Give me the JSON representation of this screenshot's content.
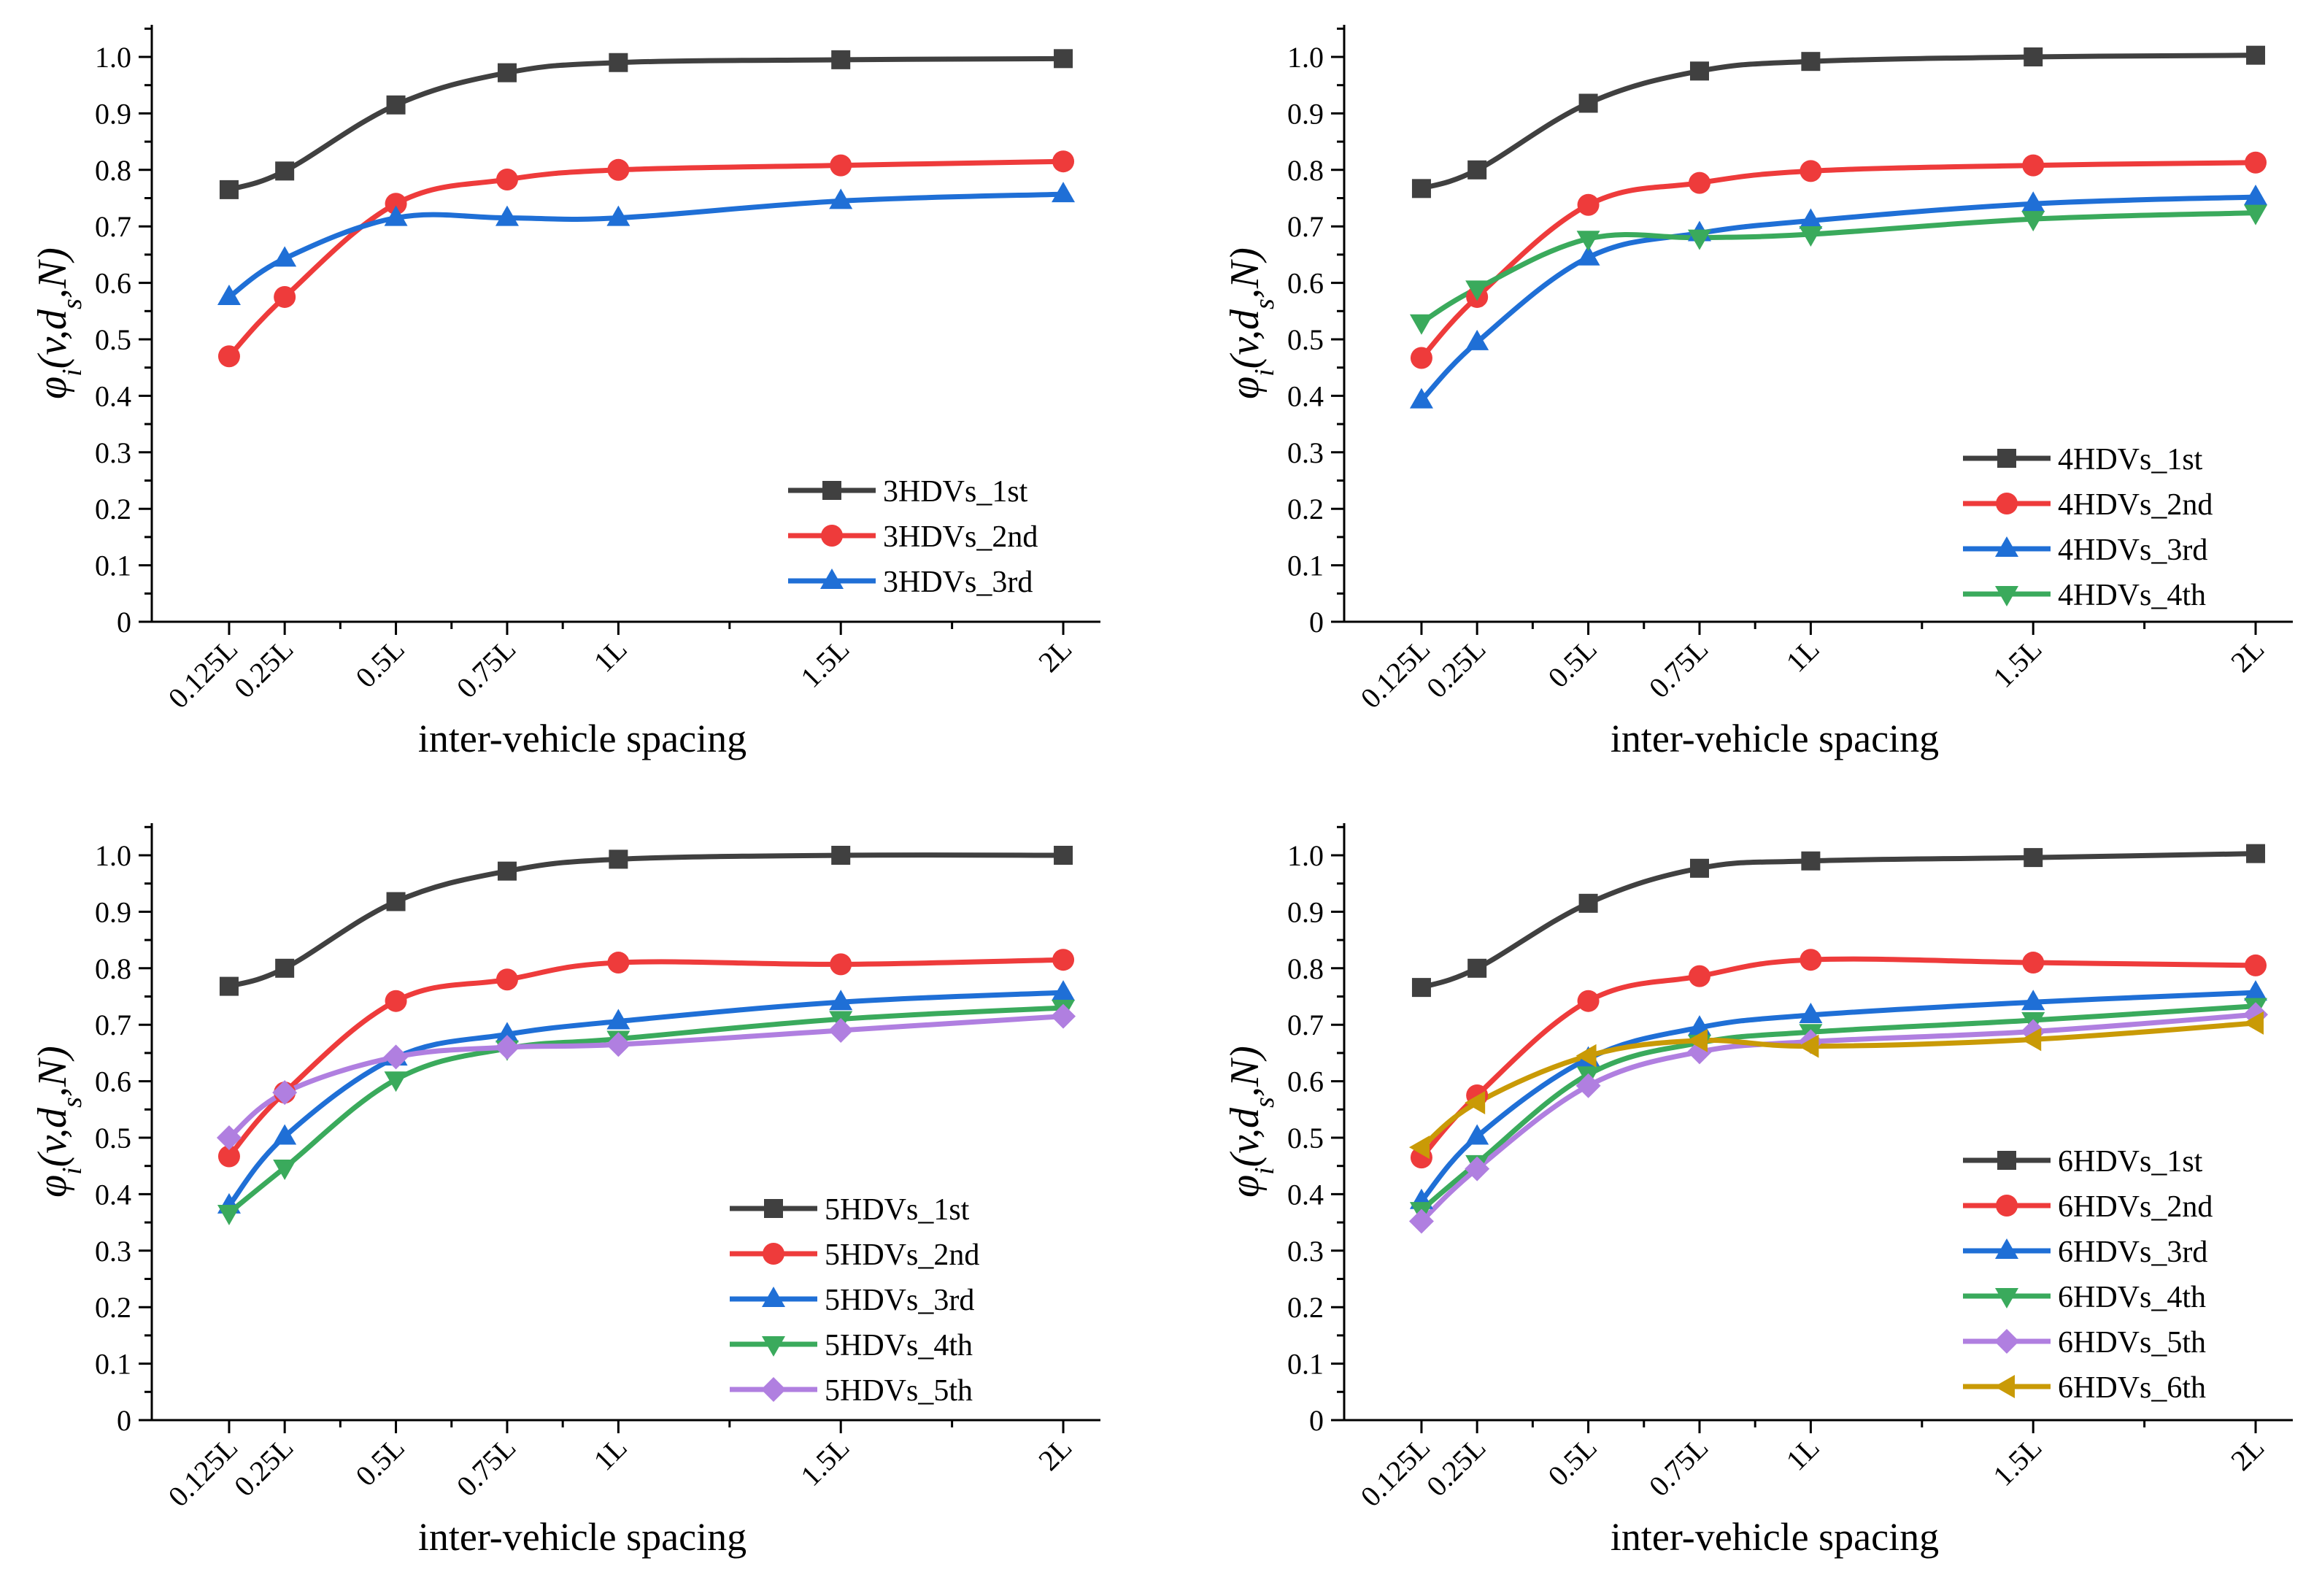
{
  "chart_data": [
    {
      "type": "line",
      "xlabel": "inter-vehicle spacing",
      "ylabel_base": "φ",
      "ylabel_sub": "i",
      "ylabel_args": "(v,d",
      "ylabel_args_sub": "s",
      "ylabel_args_end": ",N)",
      "ylim": [
        0,
        1.0
      ],
      "yticks": [
        "0",
        "0.1",
        "0.2",
        "0.3",
        "0.4",
        "0.5",
        "0.6",
        "0.7",
        "0.8",
        "0.9",
        "1.0"
      ],
      "x": [
        0.125,
        0.25,
        0.5,
        0.75,
        1,
        1.5,
        2
      ],
      "xtick_labels": [
        "0.125L",
        "0.25L",
        "0.5L",
        "0.75L",
        "1L",
        "1.5L",
        "2L"
      ],
      "legend_position": "bottom-right",
      "series": [
        {
          "name": "3HDVs_1st",
          "color": "#404040",
          "marker": "square",
          "values": [
            0.765,
            0.798,
            0.915,
            0.972,
            0.99,
            0.995,
            0.997
          ]
        },
        {
          "name": "3HDVs_2nd",
          "color": "#ee3b3b",
          "marker": "circle",
          "values": [
            0.47,
            0.575,
            0.74,
            0.783,
            0.8,
            0.808,
            0.815
          ]
        },
        {
          "name": "3HDVs_3rd",
          "color": "#1f6fd6",
          "marker": "triangle-up",
          "values": [
            0.575,
            0.643,
            0.715,
            0.715,
            0.715,
            0.745,
            0.757
          ]
        }
      ]
    },
    {
      "type": "line",
      "xlabel": "inter-vehicle spacing",
      "ylabel_base": "φ",
      "ylabel_sub": "i",
      "ylabel_args": "(v,d",
      "ylabel_args_sub": "s",
      "ylabel_args_end": ",N)",
      "ylim": [
        0,
        1.0
      ],
      "yticks": [
        "0",
        "0.1",
        "0.2",
        "0.3",
        "0.4",
        "0.5",
        "0.6",
        "0.7",
        "0.8",
        "0.9",
        "1.0"
      ],
      "x": [
        0.125,
        0.25,
        0.5,
        0.75,
        1,
        1.5,
        2
      ],
      "xtick_labels": [
        "0.125L",
        "0.25L",
        "0.5L",
        "0.75L",
        "1L",
        "1.5L",
        "2L"
      ],
      "legend_position": "bottom-right",
      "series": [
        {
          "name": "4HDVs_1st",
          "color": "#404040",
          "marker": "square",
          "values": [
            0.767,
            0.8,
            0.918,
            0.975,
            0.992,
            1.0,
            1.003
          ]
        },
        {
          "name": "4HDVs_2nd",
          "color": "#ee3b3b",
          "marker": "circle",
          "values": [
            0.467,
            0.575,
            0.738,
            0.777,
            0.798,
            0.808,
            0.813
          ]
        },
        {
          "name": "4HDVs_3rd",
          "color": "#1f6fd6",
          "marker": "triangle-up",
          "values": [
            0.392,
            0.495,
            0.645,
            0.688,
            0.71,
            0.74,
            0.752
          ]
        },
        {
          "name": "4HDVs_4th",
          "color": "#3aaa5c",
          "marker": "triangle-down",
          "values": [
            0.53,
            0.59,
            0.678,
            0.68,
            0.686,
            0.713,
            0.724
          ]
        }
      ]
    },
    {
      "type": "line",
      "xlabel": "inter-vehicle spacing",
      "ylabel_base": "φ",
      "ylabel_sub": "i",
      "ylabel_args": "(v,d",
      "ylabel_args_sub": "s",
      "ylabel_args_end": ",N)",
      "ylim": [
        0,
        1.0
      ],
      "yticks": [
        "0",
        "0.1",
        "0.2",
        "0.3",
        "0.4",
        "0.5",
        "0.6",
        "0.7",
        "0.8",
        "0.9",
        "1.0"
      ],
      "x": [
        0.125,
        0.25,
        0.5,
        0.75,
        1,
        1.5,
        2
      ],
      "xtick_labels": [
        "0.125L",
        "0.25L",
        "0.5L",
        "0.75L",
        "1L",
        "1.5L",
        "2L"
      ],
      "legend_position": "bottom-right",
      "series": [
        {
          "name": "5HDVs_1st",
          "color": "#404040",
          "marker": "square",
          "values": [
            0.768,
            0.8,
            0.918,
            0.972,
            0.993,
            1.0,
            1.0
          ]
        },
        {
          "name": "5HDVs_2nd",
          "color": "#ee3b3b",
          "marker": "circle",
          "values": [
            0.467,
            0.58,
            0.742,
            0.78,
            0.81,
            0.807,
            0.815
          ]
        },
        {
          "name": "5HDVs_3rd",
          "color": "#1f6fd6",
          "marker": "triangle-up",
          "values": [
            0.38,
            0.502,
            0.642,
            0.683,
            0.706,
            0.74,
            0.757
          ]
        },
        {
          "name": "5HDVs_4th",
          "color": "#3aaa5c",
          "marker": "triangle-down",
          "values": [
            0.367,
            0.447,
            0.603,
            0.658,
            0.675,
            0.71,
            0.73
          ]
        },
        {
          "name": "5HDVs_5th",
          "color": "#b07fe0",
          "marker": "diamond",
          "values": [
            0.5,
            0.58,
            0.643,
            0.66,
            0.665,
            0.69,
            0.715
          ]
        }
      ]
    },
    {
      "type": "line",
      "xlabel": "inter-vehicle spacing",
      "ylabel_base": "φ",
      "ylabel_sub": "i",
      "ylabel_args": "(v,d",
      "ylabel_args_sub": "s",
      "ylabel_args_end": ",N)",
      "ylim": [
        0,
        1.0
      ],
      "yticks": [
        "0",
        "0.1",
        "0.2",
        "0.3",
        "0.4",
        "0.5",
        "0.6",
        "0.7",
        "0.8",
        "0.9",
        "1.0"
      ],
      "x": [
        0.125,
        0.25,
        0.5,
        0.75,
        1,
        1.5,
        2
      ],
      "xtick_labels": [
        "0.125L",
        "0.25L",
        "0.5L",
        "0.75L",
        "1L",
        "1.5L",
        "2L"
      ],
      "legend_position": "bottom-right",
      "series": [
        {
          "name": "6HDVs_1st",
          "color": "#404040",
          "marker": "square",
          "values": [
            0.766,
            0.8,
            0.915,
            0.977,
            0.99,
            0.996,
            1.003
          ]
        },
        {
          "name": "6HDVs_2nd",
          "color": "#ee3b3b",
          "marker": "circle",
          "values": [
            0.465,
            0.575,
            0.742,
            0.786,
            0.815,
            0.81,
            0.805
          ]
        },
        {
          "name": "6HDVs_3rd",
          "color": "#1f6fd6",
          "marker": "triangle-up",
          "values": [
            0.388,
            0.502,
            0.64,
            0.695,
            0.717,
            0.74,
            0.757
          ]
        },
        {
          "name": "6HDVs_4th",
          "color": "#3aaa5c",
          "marker": "triangle-down",
          "values": [
            0.372,
            0.455,
            0.612,
            0.668,
            0.687,
            0.708,
            0.733
          ]
        },
        {
          "name": "6HDVs_5th",
          "color": "#b07fe0",
          "marker": "diamond",
          "values": [
            0.352,
            0.445,
            0.592,
            0.652,
            0.67,
            0.688,
            0.718
          ]
        },
        {
          "name": "6HDVs_6th",
          "color": "#c99a06",
          "marker": "triangle-left",
          "values": [
            0.483,
            0.562,
            0.645,
            0.672,
            0.662,
            0.674,
            0.703
          ]
        }
      ]
    }
  ]
}
